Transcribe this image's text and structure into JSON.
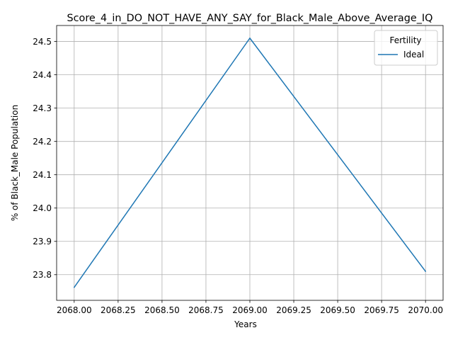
{
  "chart_data": {
    "type": "line",
    "title": "Score_4_in_DO_NOT_HAVE_ANY_SAY_for_Black_Male_Above_Average_IQ",
    "xlabel": "Years",
    "ylabel": "% of Black_Male Population",
    "x_ticks": [
      "2068.00",
      "2068.25",
      "2068.50",
      "2068.75",
      "2069.00",
      "2069.25",
      "2069.50",
      "2069.75",
      "2070.00"
    ],
    "y_ticks": [
      "23.8",
      "23.9",
      "24.0",
      "24.1",
      "24.2",
      "24.3",
      "24.4",
      "24.5"
    ],
    "xlim": [
      2067.9,
      2070.1
    ],
    "ylim": [
      23.723,
      24.548
    ],
    "grid": true,
    "legend": {
      "title": "Fertility",
      "placement": "top-right"
    },
    "series": [
      {
        "name": "Ideal",
        "color": "#1f77b4",
        "x": [
          2068,
          2069,
          2070
        ],
        "y": [
          23.762,
          24.51,
          23.81
        ]
      }
    ]
  }
}
